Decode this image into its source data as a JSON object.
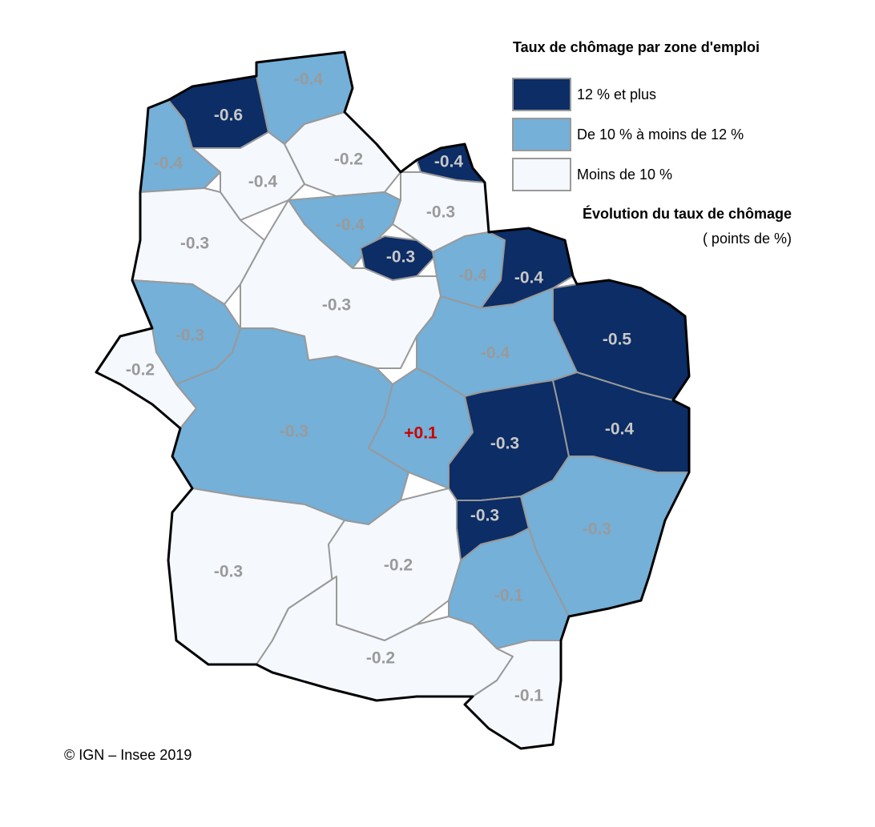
{
  "legend": {
    "title": "Taux de chômage par zone d'emploi",
    "items": [
      {
        "label": "12 % et plus",
        "color": "#0c2d65"
      },
      {
        "label": "De 10 % à moins de 12 %",
        "color": "#74b0d8"
      },
      {
        "label": "Moins de 10 %",
        "color": "#f5f8fd"
      }
    ],
    "subtitle": "Évolution du taux de chômage",
    "unit": "( points de %)"
  },
  "zones": [
    {
      "label": "-0.6",
      "color": "#0c2d65",
      "label_color": "#c8c8c8"
    },
    {
      "label": "-0.4",
      "color": "#74b0d8",
      "label_color": "#9a9a9a"
    },
    {
      "label": "-0.4",
      "color": "#74b0d8",
      "label_color": "#9a9a9a"
    },
    {
      "label": "-0.2",
      "color": "#f5f8fd",
      "label_color": "#9a9a9a"
    },
    {
      "label": "-0.4",
      "color": "#f5f8fd",
      "label_color": "#9a9a9a"
    },
    {
      "label": "-0.4",
      "color": "#0c2d65",
      "label_color": "#c8c8c8"
    },
    {
      "label": "-0.3",
      "color": "#f5f8fd",
      "label_color": "#9a9a9a"
    },
    {
      "label": "-0.4",
      "color": "#74b0d8",
      "label_color": "#9a9a9a"
    },
    {
      "label": "-0.3",
      "color": "#f5f8fd",
      "label_color": "#9a9a9a"
    },
    {
      "label": "-0.3",
      "color": "#0c2d65",
      "label_color": "#c8c8c8"
    },
    {
      "label": "-0.4",
      "color": "#74b0d8",
      "label_color": "#9a9a9a"
    },
    {
      "label": "-0.4",
      "color": "#0c2d65",
      "label_color": "#c8c8c8"
    },
    {
      "label": "-0.3",
      "color": "#f5f8fd",
      "label_color": "#9a9a9a"
    },
    {
      "label": "-0.3",
      "color": "#74b0d8",
      "label_color": "#9a9a9a"
    },
    {
      "label": "-0.2",
      "color": "#f5f8fd",
      "label_color": "#9a9a9a"
    },
    {
      "label": "-0.4",
      "color": "#74b0d8",
      "label_color": "#9a9a9a"
    },
    {
      "label": "-0.5",
      "color": "#0c2d65",
      "label_color": "#c8c8c8"
    },
    {
      "label": "-0.3",
      "color": "#74b0d8",
      "label_color": "#9a9a9a"
    },
    {
      "label": "+0.1",
      "color": "#74b0d8",
      "label_color": "#cc0000"
    },
    {
      "label": "-0.3",
      "color": "#0c2d65",
      "label_color": "#c8c8c8"
    },
    {
      "label": "-0.4",
      "color": "#0c2d65",
      "label_color": "#c8c8c8"
    },
    {
      "label": "-0.3",
      "color": "#0c2d65",
      "label_color": "#c8c8c8"
    },
    {
      "label": "-0.3",
      "color": "#74b0d8",
      "label_color": "#9a9a9a"
    },
    {
      "label": "-0.3",
      "color": "#f5f8fd",
      "label_color": "#9a9a9a"
    },
    {
      "label": "-0.2",
      "color": "#f5f8fd",
      "label_color": "#9a9a9a"
    },
    {
      "label": "-0.1",
      "color": "#74b0d8",
      "label_color": "#9a9a9a"
    },
    {
      "label": "-0.2",
      "color": "#f5f8fd",
      "label_color": "#9a9a9a"
    },
    {
      "label": "-0.1",
      "color": "#f5f8fd",
      "label_color": "#9a9a9a"
    }
  ],
  "credit": "© IGN – Insee 2019"
}
